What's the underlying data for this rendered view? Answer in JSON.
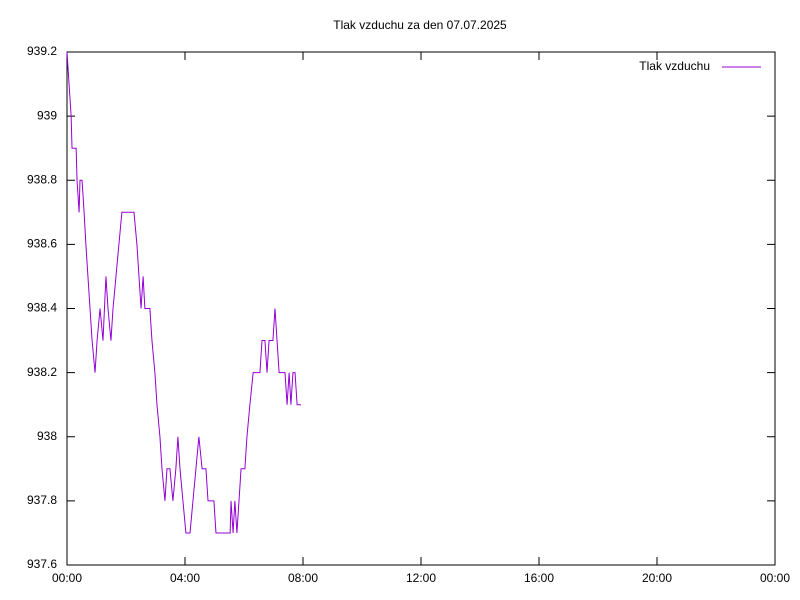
{
  "chart_data": {
    "type": "line",
    "title": "Tlak vzduchu za den 07.07.2025",
    "x": [
      0,
      0.07,
      0.14,
      0.17,
      0.31,
      0.34,
      0.41,
      0.44,
      0.51,
      0.58,
      0.64,
      0.71,
      0.78,
      0.85,
      0.95,
      1.02,
      1.12,
      1.22,
      1.32,
      1.39,
      1.49,
      1.56,
      1.66,
      1.76,
      1.86,
      2.27,
      2.37,
      2.44,
      2.51,
      2.58,
      2.64,
      2.81,
      2.88,
      2.98,
      3.05,
      3.15,
      3.22,
      3.32,
      3.39,
      3.49,
      3.59,
      3.69,
      3.76,
      3.83,
      3.93,
      4.03,
      4.17,
      4.27,
      4.37,
      4.47,
      4.58,
      4.71,
      4.78,
      4.98,
      5.05,
      5.53,
      5.56,
      5.63,
      5.69,
      5.76,
      5.83,
      5.9,
      6.03,
      6.1,
      6.2,
      6.31,
      6.54,
      6.61,
      6.71,
      6.78,
      6.85,
      6.98,
      7.05,
      7.12,
      7.19,
      7.39,
      7.46,
      7.53,
      7.59,
      7.66,
      7.73,
      7.8,
      7.93
    ],
    "series": [
      {
        "name": "Tlak vzduchu",
        "color": "#9400d3",
        "values": [
          939.2,
          939.1,
          939.0,
          938.9,
          938.9,
          938.8,
          938.7,
          938.8,
          938.8,
          938.7,
          938.6,
          938.5,
          938.4,
          938.3,
          938.2,
          938.3,
          938.4,
          938.3,
          938.5,
          938.4,
          938.3,
          938.4,
          938.5,
          938.6,
          938.7,
          938.7,
          938.6,
          938.5,
          938.4,
          938.5,
          938.4,
          938.4,
          938.3,
          938.2,
          938.1,
          938.0,
          937.9,
          937.8,
          937.9,
          937.9,
          937.8,
          937.9,
          938.0,
          937.9,
          937.8,
          937.7,
          937.7,
          937.8,
          937.9,
          938.0,
          937.9,
          937.9,
          937.8,
          937.8,
          937.7,
          937.7,
          937.8,
          937.7,
          937.8,
          937.7,
          937.8,
          937.9,
          937.9,
          938.0,
          938.1,
          938.2,
          938.2,
          938.3,
          938.3,
          938.2,
          938.3,
          938.3,
          938.4,
          938.3,
          938.2,
          938.2,
          938.1,
          938.2,
          938.1,
          938.2,
          938.2,
          938.1,
          938.1
        ]
      }
    ],
    "xlim": [
      0,
      24
    ],
    "xticks": [
      {
        "value": 0,
        "label": "00:00"
      },
      {
        "value": 4,
        "label": "04:00"
      },
      {
        "value": 8,
        "label": "08:00"
      },
      {
        "value": 12,
        "label": "12:00"
      },
      {
        "value": 16,
        "label": "16:00"
      },
      {
        "value": 20,
        "label": "20:00"
      },
      {
        "value": 24,
        "label": "00:00"
      }
    ],
    "ylim": [
      937.6,
      939.2
    ],
    "yticks": [
      937.6,
      937.8,
      938,
      938.2,
      938.4,
      938.6,
      938.8,
      939,
      939.2
    ],
    "legend": "top-right"
  }
}
